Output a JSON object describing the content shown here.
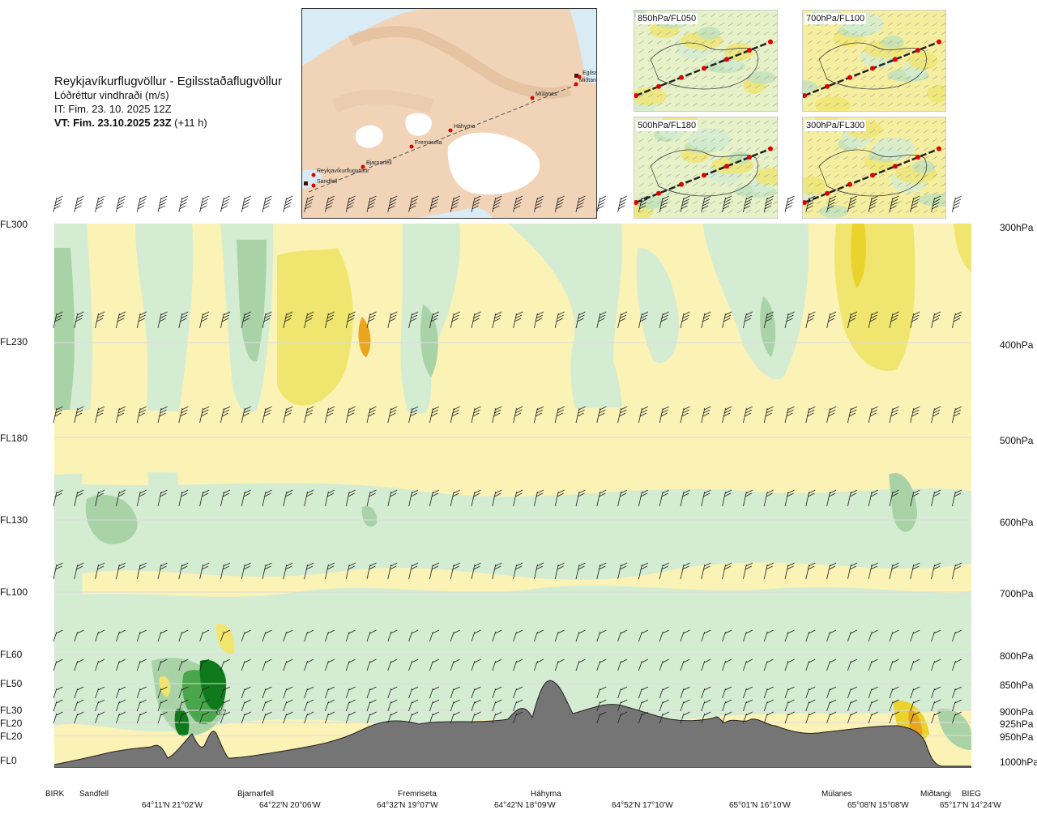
{
  "title": {
    "route": "Reykjavíkurflugvöllur - Egilsstaðaflugvöllur",
    "variable": "Lóðréttur vindhraði (m/s)",
    "issue_time": "IT: Fim. 23. 10. 2025 12Z",
    "valid_time": "VT: Fim. 23.10.2025 23Z",
    "lead": "(+11 h)"
  },
  "route_map": {
    "waypoints": [
      "Reykjavíkurflugvöllur",
      "Sandfell",
      "Bjarnarfell",
      "Fremriseta",
      "Háhyrna",
      "Múlanes",
      "Egilsstaðir",
      "Miðtangi"
    ],
    "route_color": "#555555",
    "point_color": "#e00000"
  },
  "mini_maps": [
    {
      "label": "850hPa/FL050"
    },
    {
      "label": "700hPa/FL100"
    },
    {
      "label": "500hPa/FL180"
    },
    {
      "label": "300hPa/FL300"
    }
  ],
  "flight_levels": [
    {
      "fl": "FL300",
      "hpa": "300hPa"
    },
    {
      "fl": "FL230",
      "hpa": "400hPa"
    },
    {
      "fl": "FL180",
      "hpa": "500hPa"
    },
    {
      "fl": "FL130",
      "hpa": "600hPa"
    },
    {
      "fl": "FL100",
      "hpa": "700hPa"
    },
    {
      "fl": "FL60",
      "hpa": "800hPa"
    },
    {
      "fl": "FL50",
      "hpa": "850hPa"
    },
    {
      "fl": "FL30",
      "hpa": "900hPa"
    },
    {
      "fl": "FL20",
      "hpa": "925hPa"
    },
    {
      "fl": "FL20",
      "hpa": "950hPa"
    },
    {
      "fl": "FL0",
      "hpa": "1000hPa"
    }
  ],
  "stations": [
    "BIRK",
    "Sandfell",
    "Bjarnarfell",
    "Fremriseta",
    "Háhyrna",
    "Múlanes",
    "Miðtangi",
    "BIEG"
  ],
  "coordinates": [
    "64°11'N 21°02'W",
    "64°22'N 20°06'W",
    "64°32'N 19°07'W",
    "64°42'N 18°09'W",
    "64°52'N 17°10'W",
    "65°01'N 16°10'W",
    "65°08'N 15°08'W",
    "65°17'N 14°24'W"
  ],
  "peak_value_label": "0.7",
  "colors": {
    "terrain": "#757575",
    "green_light": "#d4ecd2",
    "green_mid": "#a9d3a6",
    "green_dark": "#4aa64a",
    "green_darkest": "#0f7a1c",
    "yellow_light": "#fbf2b6",
    "yellow_mid": "#f0e56e",
    "yellow_dark": "#e9d32c",
    "orange": "#e9a51c",
    "land_map": "#f3d9c1",
    "sea_map": "#d9ebf5"
  }
}
